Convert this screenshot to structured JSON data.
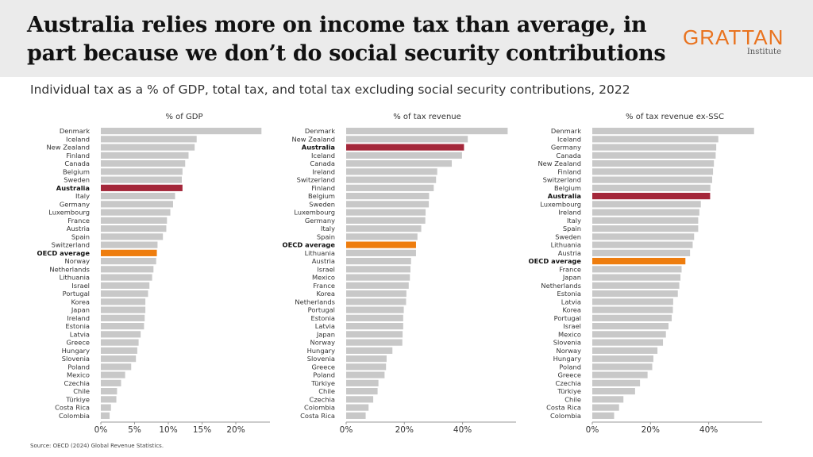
{
  "header": {
    "title_line1": "Australia relies more on income tax than average, in",
    "title_line2": "part because we don’t do social security contributions",
    "logo_main": "GRATTAN",
    "logo_sub": "Institute"
  },
  "subtitle": "Individual tax as a % of GDP, total tax, and total tax excluding social security contributions, 2022",
  "source": "Source: OECD (2024) Global Revenue Statistics.",
  "colors": {
    "bar": "#c8c8c8",
    "australia": "#a4273a",
    "oecd": "#ee7d0e",
    "axis": "#999999"
  },
  "chart_data": [
    {
      "type": "bar",
      "orientation": "horizontal",
      "title": "% of GDP",
      "xlim": [
        0,
        25
      ],
      "ticks": [
        0,
        5,
        10,
        15,
        20
      ],
      "tick_labels": [
        "0%",
        "5%",
        "10%",
        "15%",
        "20%"
      ],
      "categories": [
        "Denmark",
        "Iceland",
        "New Zealand",
        "Finland",
        "Canada",
        "Belgium",
        "Sweden",
        "Australia",
        "Italy",
        "Germany",
        "Luxembourg",
        "France",
        "Austria",
        "Spain",
        "Switzerland",
        "OECD average",
        "Norway",
        "Netherlands",
        "Lithuania",
        "Israel",
        "Portugal",
        "Korea",
        "Japan",
        "Ireland",
        "Estonia",
        "Latvia",
        "Greece",
        "Hungary",
        "Slovenia",
        "Poland",
        "Mexico",
        "Czechia",
        "Chile",
        "Türkiye",
        "Costa Rica",
        "Colombia"
      ],
      "values": [
        23.8,
        14.2,
        13.9,
        13.0,
        12.5,
        12.1,
        12.0,
        12.1,
        11.0,
        10.7,
        10.3,
        9.8,
        9.7,
        9.2,
        8.4,
        8.3,
        8.2,
        7.8,
        7.6,
        7.2,
        7.0,
        6.6,
        6.6,
        6.5,
        6.4,
        5.9,
        5.6,
        5.4,
        5.2,
        4.5,
        3.6,
        3.0,
        2.4,
        2.3,
        1.5,
        1.3
      ]
    },
    {
      "type": "bar",
      "orientation": "horizontal",
      "title": "% of tax revenue",
      "xlim": [
        0,
        57
      ],
      "ticks": [
        0,
        20,
        40
      ],
      "tick_labels": [
        "0%",
        "20%",
        "40%"
      ],
      "categories": [
        "Denmark",
        "New Zealand",
        "Australia",
        "Iceland",
        "Canada",
        "Ireland",
        "Switzerland",
        "Finland",
        "Belgium",
        "Sweden",
        "Luxembourg",
        "Germany",
        "Italy",
        "Spain",
        "OECD average",
        "Lithuania",
        "Austria",
        "Israel",
        "Mexico",
        "France",
        "Korea",
        "Netherlands",
        "Portugal",
        "Estonia",
        "Latvia",
        "Japan",
        "Norway",
        "Hungary",
        "Slovenia",
        "Greece",
        "Poland",
        "Türkiye",
        "Chile",
        "Czechia",
        "Colombia",
        "Costa Rica"
      ],
      "values": [
        55.5,
        41.8,
        40.5,
        39.8,
        36.3,
        31.3,
        30.9,
        30.1,
        28.5,
        28.4,
        27.3,
        27.2,
        25.8,
        24.5,
        24.0,
        24.0,
        22.3,
        22.1,
        21.9,
        21.5,
        20.7,
        20.6,
        19.8,
        19.6,
        19.6,
        19.4,
        19.3,
        15.9,
        13.9,
        13.7,
        13.2,
        11.1,
        10.8,
        9.3,
        7.7,
        6.7
      ]
    },
    {
      "type": "bar",
      "orientation": "horizontal",
      "title": "% of tax revenue ex-SSC",
      "xlim": [
        0,
        57
      ],
      "ticks": [
        0,
        20,
        40
      ],
      "tick_labels": [
        "0%",
        "20%",
        "40%"
      ],
      "categories": [
        "Denmark",
        "Iceland",
        "Germany",
        "Canada",
        "New Zealand",
        "Finland",
        "Switzerland",
        "Belgium",
        "Australia",
        "Luxembourg",
        "Ireland",
        "Italy",
        "Spain",
        "Sweden",
        "Lithuania",
        "Austria",
        "OECD average",
        "France",
        "Japan",
        "Netherlands",
        "Estonia",
        "Latvia",
        "Korea",
        "Portugal",
        "Israel",
        "Mexico",
        "Slovenia",
        "Norway",
        "Hungary",
        "Poland",
        "Greece",
        "Czechia",
        "Türkiye",
        "Chile",
        "Costa Rica",
        "Colombia"
      ],
      "values": [
        55.6,
        43.3,
        42.6,
        42.4,
        41.8,
        41.5,
        41.2,
        40.6,
        40.5,
        37.3,
        36.8,
        36.4,
        36.4,
        35.0,
        34.5,
        33.6,
        32.0,
        30.7,
        30.3,
        29.9,
        29.4,
        27.8,
        27.7,
        27.3,
        26.2,
        25.3,
        24.3,
        22.4,
        21.0,
        20.6,
        19.0,
        16.4,
        14.7,
        10.7,
        9.2,
        7.5
      ]
    }
  ]
}
